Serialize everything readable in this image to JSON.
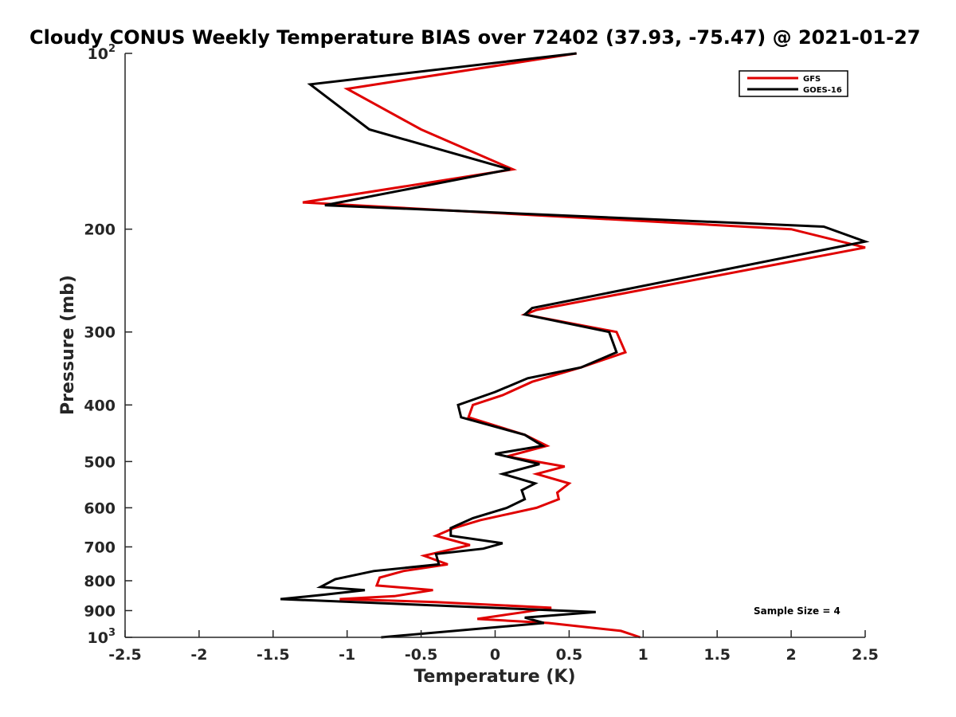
{
  "chart_data": {
    "type": "line",
    "title": "Cloudy CONUS Weekly Temperature BIAS over 72402 (37.93, -75.47) @ 2021-01-27",
    "xlabel": "Temperature (K)",
    "ylabel": "Pressure (mb)",
    "xlim": [
      -2.5,
      2.5
    ],
    "ylim": [
      100,
      1000
    ],
    "y_scale": "log",
    "y_reversed": true,
    "grid": false,
    "legend_position": "top-right",
    "x_ticks": [
      -2.5,
      -2,
      -1.5,
      -1,
      -0.5,
      0,
      0.5,
      1,
      1.5,
      2,
      2.5
    ],
    "x_tick_labels": [
      "-2.5",
      "-2",
      "-1.5",
      "-1",
      "-0.5",
      "0",
      "0.5",
      "1",
      "1.5",
      "2",
      "2.5"
    ],
    "y_ticks": [
      {
        "value": 100,
        "base": "10",
        "exp": "2"
      },
      {
        "value": 200,
        "label": "200"
      },
      {
        "value": 300,
        "label": "300"
      },
      {
        "value": 400,
        "label": "400"
      },
      {
        "value": 500,
        "label": "500"
      },
      {
        "value": 600,
        "label": "600"
      },
      {
        "value": 700,
        "label": "700"
      },
      {
        "value": 800,
        "label": "800"
      },
      {
        "value": 900,
        "label": "900"
      },
      {
        "value": 1000,
        "base": "10",
        "exp": "3"
      }
    ],
    "series": [
      {
        "name": "GFS",
        "color": "#e00000",
        "points": [
          [
            0.55,
            100
          ],
          [
            -1.0,
            115
          ],
          [
            -0.5,
            135
          ],
          [
            0.12,
            158
          ],
          [
            -1.3,
            180
          ],
          [
            2.0,
            200
          ],
          [
            2.5,
            215
          ],
          [
            0.28,
            275
          ],
          [
            0.2,
            280
          ],
          [
            0.82,
            300
          ],
          [
            0.88,
            325
          ],
          [
            0.58,
            345
          ],
          [
            0.25,
            365
          ],
          [
            0.05,
            385
          ],
          [
            -0.15,
            400
          ],
          [
            -0.18,
            420
          ],
          [
            0.2,
            450
          ],
          [
            0.35,
            470
          ],
          [
            0.08,
            490
          ],
          [
            0.47,
            510
          ],
          [
            0.28,
            525
          ],
          [
            0.5,
            545
          ],
          [
            0.42,
            565
          ],
          [
            0.43,
            580
          ],
          [
            0.28,
            600
          ],
          [
            -0.1,
            630
          ],
          [
            -0.28,
            650
          ],
          [
            -0.4,
            670
          ],
          [
            -0.17,
            695
          ],
          [
            -0.48,
            725
          ],
          [
            -0.32,
            750
          ],
          [
            -0.62,
            770
          ],
          [
            -0.78,
            790
          ],
          [
            -0.8,
            815
          ],
          [
            -0.42,
            830
          ],
          [
            -0.68,
            850
          ],
          [
            -1.05,
            860
          ],
          [
            -0.4,
            870
          ],
          [
            0.38,
            890
          ],
          [
            0.2,
            905
          ],
          [
            -0.12,
            930
          ],
          [
            0.36,
            945
          ],
          [
            0.85,
            975
          ],
          [
            0.98,
            1000
          ]
        ]
      },
      {
        "name": "GOES-16",
        "color": "#000000",
        "points": [
          [
            0.55,
            100
          ],
          [
            -1.25,
            113
          ],
          [
            -0.85,
            135
          ],
          [
            0.1,
            158
          ],
          [
            -1.15,
            182
          ],
          [
            2.22,
            198
          ],
          [
            2.5,
            210
          ],
          [
            0.25,
            273
          ],
          [
            0.2,
            280
          ],
          [
            0.77,
            300
          ],
          [
            0.82,
            325
          ],
          [
            0.58,
            345
          ],
          [
            0.22,
            360
          ],
          [
            0.0,
            380
          ],
          [
            -0.25,
            400
          ],
          [
            -0.23,
            420
          ],
          [
            0.2,
            450
          ],
          [
            0.32,
            470
          ],
          [
            0.0,
            485
          ],
          [
            0.3,
            505
          ],
          [
            0.05,
            525
          ],
          [
            0.27,
            545
          ],
          [
            0.18,
            560
          ],
          [
            0.2,
            580
          ],
          [
            0.08,
            600
          ],
          [
            -0.15,
            625
          ],
          [
            -0.3,
            650
          ],
          [
            -0.3,
            670
          ],
          [
            0.05,
            690
          ],
          [
            -0.08,
            705
          ],
          [
            -0.4,
            720
          ],
          [
            -0.38,
            750
          ],
          [
            -0.82,
            770
          ],
          [
            -1.08,
            795
          ],
          [
            -1.18,
            820
          ],
          [
            -0.88,
            830
          ],
          [
            -1.15,
            845
          ],
          [
            -1.45,
            860
          ],
          [
            0.68,
            905
          ],
          [
            0.2,
            925
          ],
          [
            0.33,
            945
          ],
          [
            -0.77,
            1000
          ]
        ]
      }
    ],
    "legend": [
      {
        "name": "GFS",
        "color": "#e00000"
      },
      {
        "name": "GOES-16",
        "color": "#000000"
      }
    ],
    "annotations": [
      {
        "text": "Sample Size = 4"
      }
    ]
  }
}
